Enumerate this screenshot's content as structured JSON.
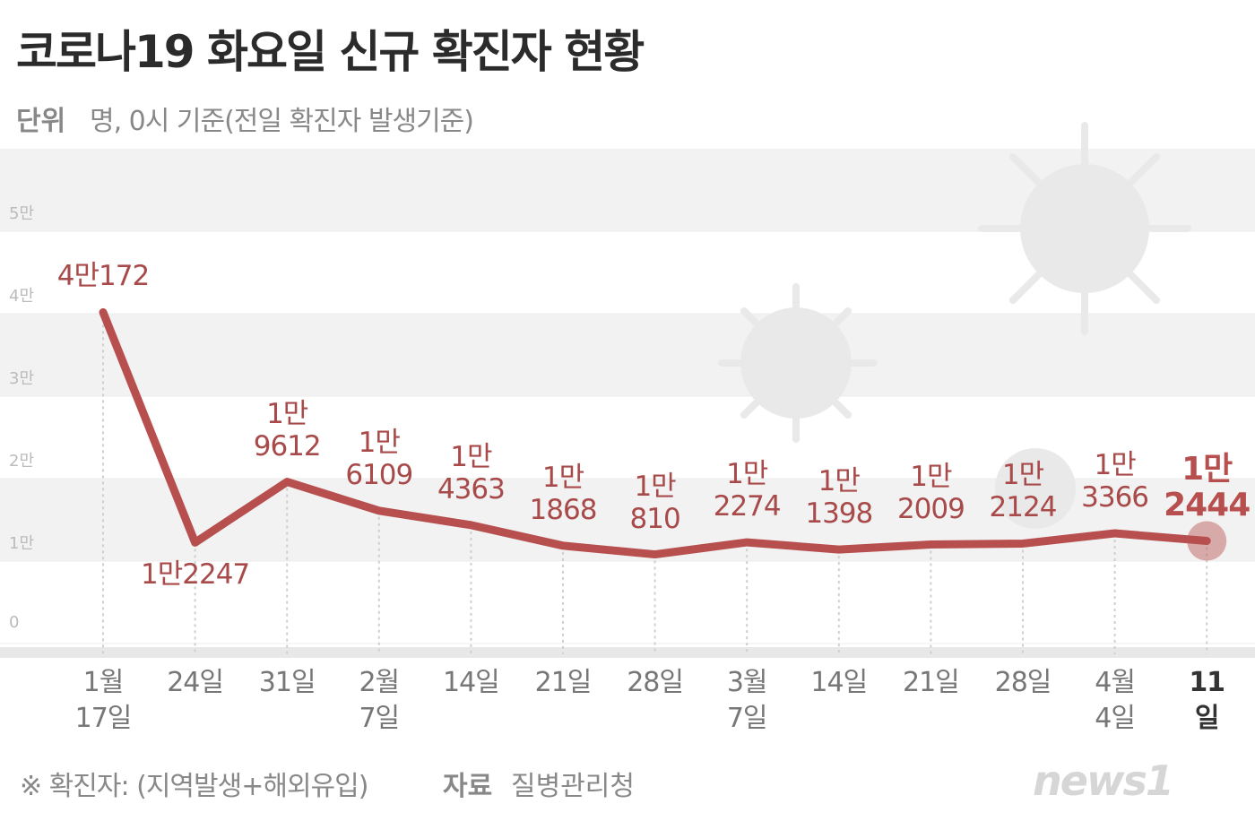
{
  "header": {
    "title": "코로나19 화요일 신규 확진자 현황",
    "unit_key": "단위",
    "unit": "명, 0시 기준(전일 확진자 발생기준)"
  },
  "chart_data": {
    "type": "line",
    "categories": [
      "1월\n17일",
      "24일",
      "31일",
      "2월\n7일",
      "14일",
      "21일",
      "28일",
      "3월\n7일",
      "14일",
      "21일",
      "28일",
      "4월\n4일",
      "11일"
    ],
    "series": [
      {
        "name": "신규 확진자",
        "color": "#b84f4f",
        "values": [
          40172,
          12247,
          19612,
          16109,
          14363,
          11868,
          10810,
          12274,
          11398,
          12009,
          12124,
          13366,
          12444
        ],
        "value_labels": [
          "4만172",
          "1만2247",
          "1만\n9612",
          "1만\n6109",
          "1만\n4363",
          "1만\n1868",
          "1만\n810",
          "1만\n2274",
          "1만\n1398",
          "1만\n2009",
          "1만\n2124",
          "1만\n3366",
          "1만\n2444"
        ]
      }
    ],
    "ylim": [
      0,
      60000
    ],
    "yticks": [
      0,
      {
        "value": 10000,
        "label": "1만"
      },
      {
        "value": 20000,
        "label": "2만"
      },
      {
        "value": 30000,
        "label": "3만"
      },
      {
        "value": 40000,
        "label": "4만"
      },
      {
        "value": 50000,
        "label": "5만"
      }
    ],
    "grid": true
  },
  "footer": {
    "note": "※ 확진자: (지역발생+해외유입)",
    "source_key": "자료",
    "source": "질병관리청",
    "logo": "news1"
  }
}
